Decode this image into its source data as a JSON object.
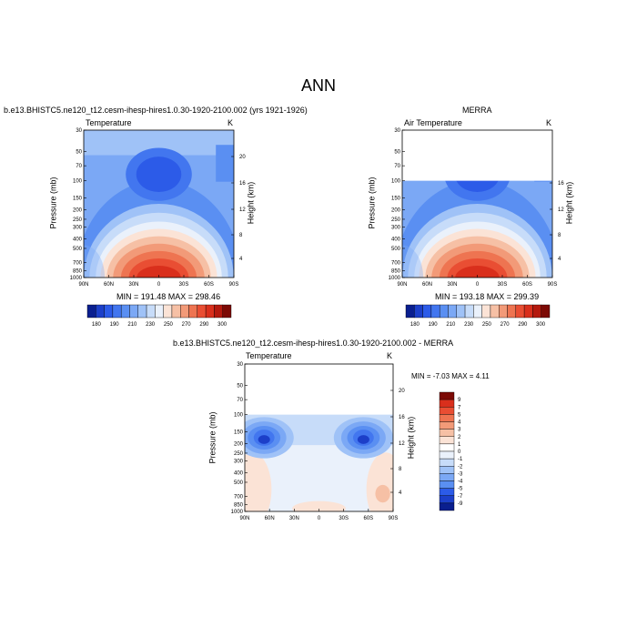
{
  "figure": {
    "title": "ANN"
  },
  "panels": {
    "left": {
      "caption": "b.e13.BHISTC5.ne120_t12.cesm-ihesp-hires1.0.30-1920-2100.002 (yrs 1921-1926)",
      "var_label": "Temperature",
      "units": "K",
      "ylabel": "Pressure (mb)",
      "ylabel_right": "Height (km)",
      "minmax": "MIN = 191.48   MAX = 298.46"
    },
    "right": {
      "caption": "MERRA",
      "var_label": "Air Temperature",
      "units": "K",
      "ylabel": "Pressure (mb)",
      "ylabel_right": "Height (km)",
      "minmax": "MIN = 193.18   MAX = 299.39"
    },
    "diff": {
      "caption": "b.e13.BHISTC5.ne120_t12.cesm-ihesp-hires1.0.30-1920-2100.002 - MERRA",
      "var_label": "Temperature",
      "units": "K",
      "ylabel": "Pressure (mb)",
      "ylabel_right": "Height (km)",
      "minmax": "MIN =  -7.03   MAX =   4.11"
    }
  },
  "chart_data": [
    {
      "type": "heatmap",
      "name": "model",
      "x_ticks": [
        "90N",
        "60N",
        "30N",
        "0",
        "30S",
        "60S",
        "90S"
      ],
      "y_ticks_pressure": [
        "30",
        "50",
        "70",
        "100",
        "150",
        "200",
        "250",
        "300",
        "400",
        "500",
        "700",
        "850",
        "1000"
      ],
      "y_ticks_height": [
        "20",
        "16",
        "12",
        "8",
        "4"
      ],
      "levels": [
        180,
        190,
        200,
        210,
        220,
        230,
        240,
        250,
        260,
        270,
        280,
        290,
        300
      ],
      "level_labels": [
        "180",
        "190",
        "210",
        "230",
        "250",
        "270",
        "290",
        "300"
      ],
      "colors": [
        "#0a1f8f",
        "#1c3fc9",
        "#2c5be8",
        "#4276ef",
        "#5a8ff2",
        "#7ba8f5",
        "#9fc2f7",
        "#c7dcf9",
        "#eaf1fb",
        "#fbe3d6",
        "#f6c0a5",
        "#f29a78",
        "#ee7451",
        "#e94e33",
        "#d92f1c",
        "#b4190e",
        "#7c0a05"
      ],
      "min": 191.48,
      "max": 298.46
    },
    {
      "type": "heatmap",
      "name": "obs",
      "x_ticks": [
        "90N",
        "60N",
        "30N",
        "0",
        "30S",
        "60S",
        "90S"
      ],
      "y_ticks_pressure": [
        "30",
        "50",
        "70",
        "100",
        "150",
        "200",
        "250",
        "300",
        "400",
        "500",
        "700",
        "850",
        "1000"
      ],
      "y_ticks_height": [
        "16",
        "12",
        "8",
        "4"
      ],
      "min": 193.18,
      "max": 299.39
    },
    {
      "type": "heatmap",
      "name": "difference",
      "x_ticks": [
        "90N",
        "60N",
        "30N",
        "0",
        "30S",
        "60S",
        "90S"
      ],
      "y_ticks_pressure": [
        "30",
        "50",
        "70",
        "100",
        "150",
        "200",
        "250",
        "300",
        "400",
        "500",
        "700",
        "850",
        "1000"
      ],
      "y_ticks_height": [
        "20",
        "16",
        "12",
        "8",
        "4"
      ],
      "levels": [
        -9,
        -7,
        -5,
        -4,
        -3,
        -2,
        -1,
        0,
        1,
        2,
        3,
        4,
        5,
        7,
        9
      ],
      "level_labels": [
        "9",
        "7",
        "5",
        "4",
        "3",
        "2",
        "1",
        "0",
        "-1",
        "-2",
        "-3",
        "-4",
        "-5",
        "-7",
        "-9"
      ],
      "colors": [
        "#7c0a05",
        "#d92f1c",
        "#e94e33",
        "#ee7451",
        "#f29a78",
        "#f6c0a5",
        "#fbe3d6",
        "#ffffff",
        "#eaf1fb",
        "#c7dcf9",
        "#9fc2f7",
        "#7ba8f5",
        "#5a8ff2",
        "#2c5be8",
        "#1c3fc9",
        "#0a1f8f"
      ],
      "min": -7.03,
      "max": 4.11
    }
  ]
}
